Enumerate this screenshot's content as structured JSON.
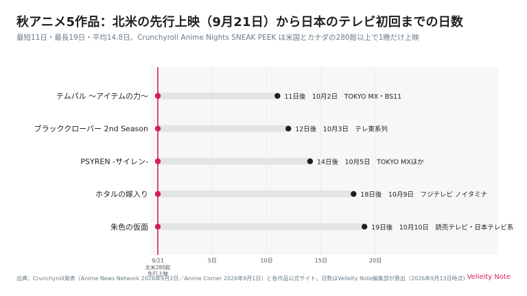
{
  "header": {
    "title": "秋アニメ5作品：北米の先行上映（9月21日）から日本のテレビ初回までの日数",
    "subtitle": "最短11日・最長19日・平均14.8日。Crunchyroll Anime Nights SNEAK PEEK は米国とカナダの280館以上で1晩だけ上映"
  },
  "footer": {
    "source": "出典：Crunchyroll発表（Anime News Network 2026年9月2日／Anime Corner 2026年9月1日）と各作品公式サイト。日数はVelleity Note編集部が算出（2026年9月13日時点）",
    "brand": "Velleity Note"
  },
  "colors": {
    "accent": "#d81b60",
    "dot": "#1f1f1f",
    "track": "#e4e4e4",
    "panel": "#f7f7f7"
  },
  "chart_data": {
    "type": "dumbbell",
    "xlim": [
      0,
      21
    ],
    "xticks": [
      {
        "value": 0,
        "label": "9/21"
      },
      {
        "value": 5,
        "label": "5日"
      },
      {
        "value": 10,
        "label": "10日"
      },
      {
        "value": 15,
        "label": "15日"
      },
      {
        "value": 20,
        "label": "20日"
      }
    ],
    "reference_line": {
      "value": 0,
      "label_line1": "北米280館",
      "label_line2": "先行上映"
    },
    "items": [
      {
        "name": "テムパル 〜アイテムの力〜",
        "start": 0,
        "days": 11,
        "label": "11日後　10月2日　TOKYO MX・BS11"
      },
      {
        "name": "ブラッククローバー 2nd Season",
        "start": 0,
        "days": 12,
        "label": "12日後　10月3日　テレ東系列"
      },
      {
        "name": "PSYREN -サイレン-",
        "start": 0,
        "days": 14,
        "label": "14日後　10月5日　TOKYO MXほか"
      },
      {
        "name": "ホタルの嫁入り",
        "start": 0,
        "days": 18,
        "label": "18日後　10月9日　フジテレビ ノイタミナ"
      },
      {
        "name": "朱色の仮面",
        "start": 0,
        "days": 19,
        "label": "19日後　10月10日　読売テレビ・日本テレビ系"
      }
    ]
  }
}
